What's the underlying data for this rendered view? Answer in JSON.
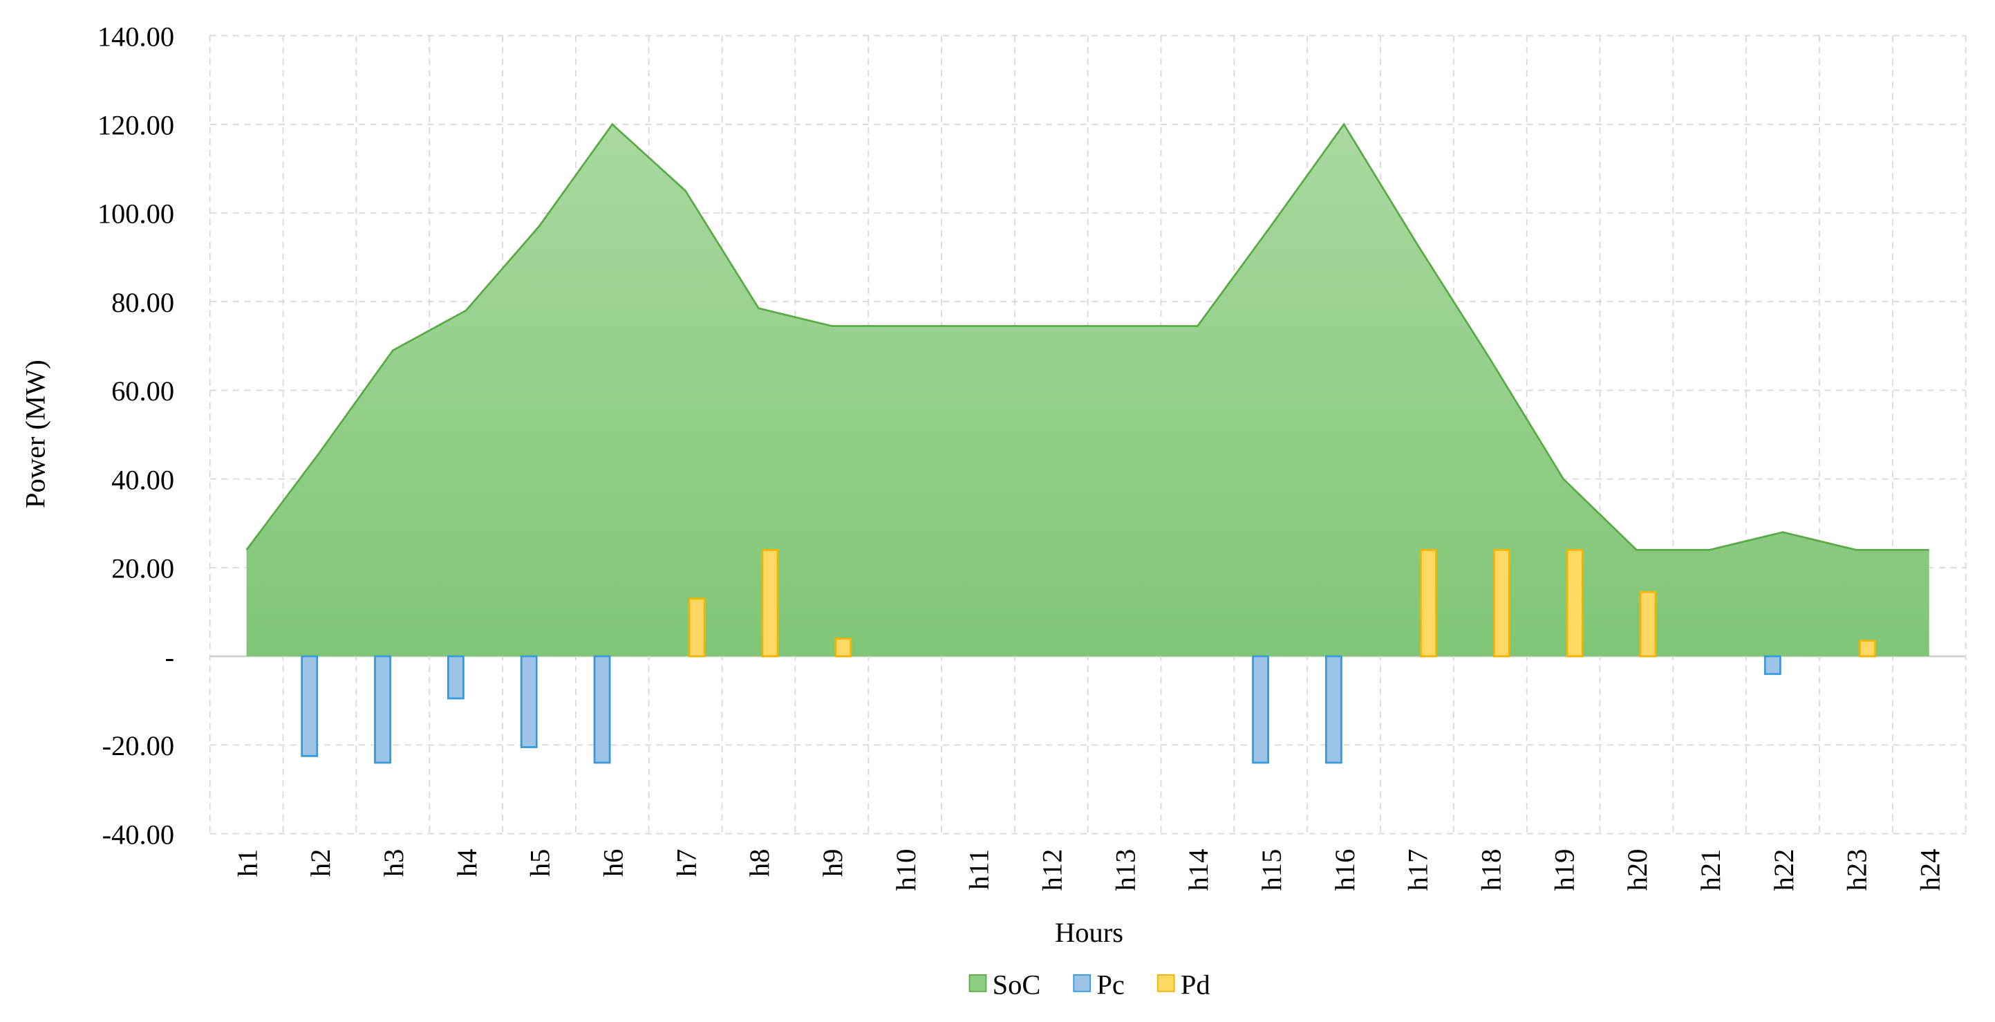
{
  "chart_data": {
    "type": "area_bar",
    "x_label": "Hours",
    "y_label": "Power (MW)",
    "categories": [
      "h1",
      "h2",
      "h3",
      "h4",
      "h5",
      "h6",
      "h7",
      "h8",
      "h9",
      "h10",
      "h11",
      "h12",
      "h13",
      "h14",
      "h15",
      "h16",
      "h17",
      "h18",
      "h19",
      "h20",
      "h21",
      "h22",
      "h23",
      "h24"
    ],
    "series": [
      {
        "name": "SoC",
        "type": "area",
        "color": "#8fcf85",
        "values": [
          24,
          46,
          69,
          78,
          97,
          120,
          105,
          78.5,
          74.5,
          74.5,
          74.5,
          74.5,
          74.5,
          74.5,
          97,
          120,
          93,
          67,
          40,
          24,
          24,
          28,
          24,
          24
        ]
      },
      {
        "name": "Pc",
        "type": "bar",
        "color": "#9dc3e6",
        "values": [
          0,
          -22.5,
          -24,
          -9.5,
          -20.5,
          -24,
          0,
          0,
          0,
          0,
          0,
          0,
          0,
          0,
          -24,
          -24,
          0,
          0,
          0,
          0,
          0,
          -4,
          0,
          0
        ]
      },
      {
        "name": "Pd",
        "type": "bar",
        "color": "#ffd966",
        "values": [
          0,
          0,
          0,
          0,
          0,
          0,
          13,
          24,
          4,
          0,
          0,
          0,
          0,
          0,
          0,
          0,
          24,
          24,
          24,
          14.5,
          0,
          0,
          3.5,
          0
        ]
      }
    ],
    "ylim": [
      -40,
      140
    ],
    "yticks": [
      {
        "value": -40,
        "label": "-40.00"
      },
      {
        "value": -20,
        "label": "-20.00"
      },
      {
        "value": 0,
        "label": "-"
      },
      {
        "value": 20,
        "label": "20.00"
      },
      {
        "value": 40,
        "label": "40.00"
      },
      {
        "value": 60,
        "label": "60.00"
      },
      {
        "value": 80,
        "label": "80.00"
      },
      {
        "value": 100,
        "label": "100.00"
      },
      {
        "value": 120,
        "label": "120.00"
      },
      {
        "value": 140,
        "label": "140.00"
      }
    ],
    "grid": true,
    "legend": "bottom"
  }
}
